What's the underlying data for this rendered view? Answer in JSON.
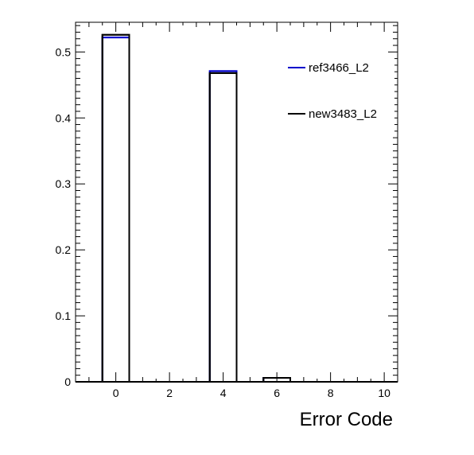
{
  "chart_data": {
    "type": "histogram",
    "title": "",
    "xlabel": "Error Code",
    "ylabel": "",
    "xlim": [
      -1.5,
      10.5
    ],
    "ylim": [
      0,
      0.545
    ],
    "x_ticks": [
      0,
      2,
      4,
      6,
      8,
      10
    ],
    "y_ticks": [
      0,
      0.1,
      0.2,
      0.3,
      0.4,
      0.5
    ],
    "y_tick_labels": [
      "0",
      "0.1",
      "0.2",
      "0.3",
      "0.4",
      "0.5"
    ],
    "bins": [
      -1.5,
      -0.5,
      0.5,
      1.5,
      2.5,
      3.5,
      4.5,
      5.5,
      6.5,
      7.5,
      8.5,
      9.5,
      10.5
    ],
    "legend_position": "top-right",
    "grid": false,
    "series": [
      {
        "name": "ref3466_L2",
        "color": "#0000cc",
        "values": [
          0,
          0.522,
          0,
          0,
          0,
          0.471,
          0,
          0.006,
          0,
          0,
          0,
          0
        ]
      },
      {
        "name": "new3483_L2",
        "color": "#000000",
        "values": [
          0,
          0.526,
          0,
          0,
          0,
          0.468,
          0,
          0.006,
          0,
          0,
          0,
          0
        ]
      }
    ]
  }
}
